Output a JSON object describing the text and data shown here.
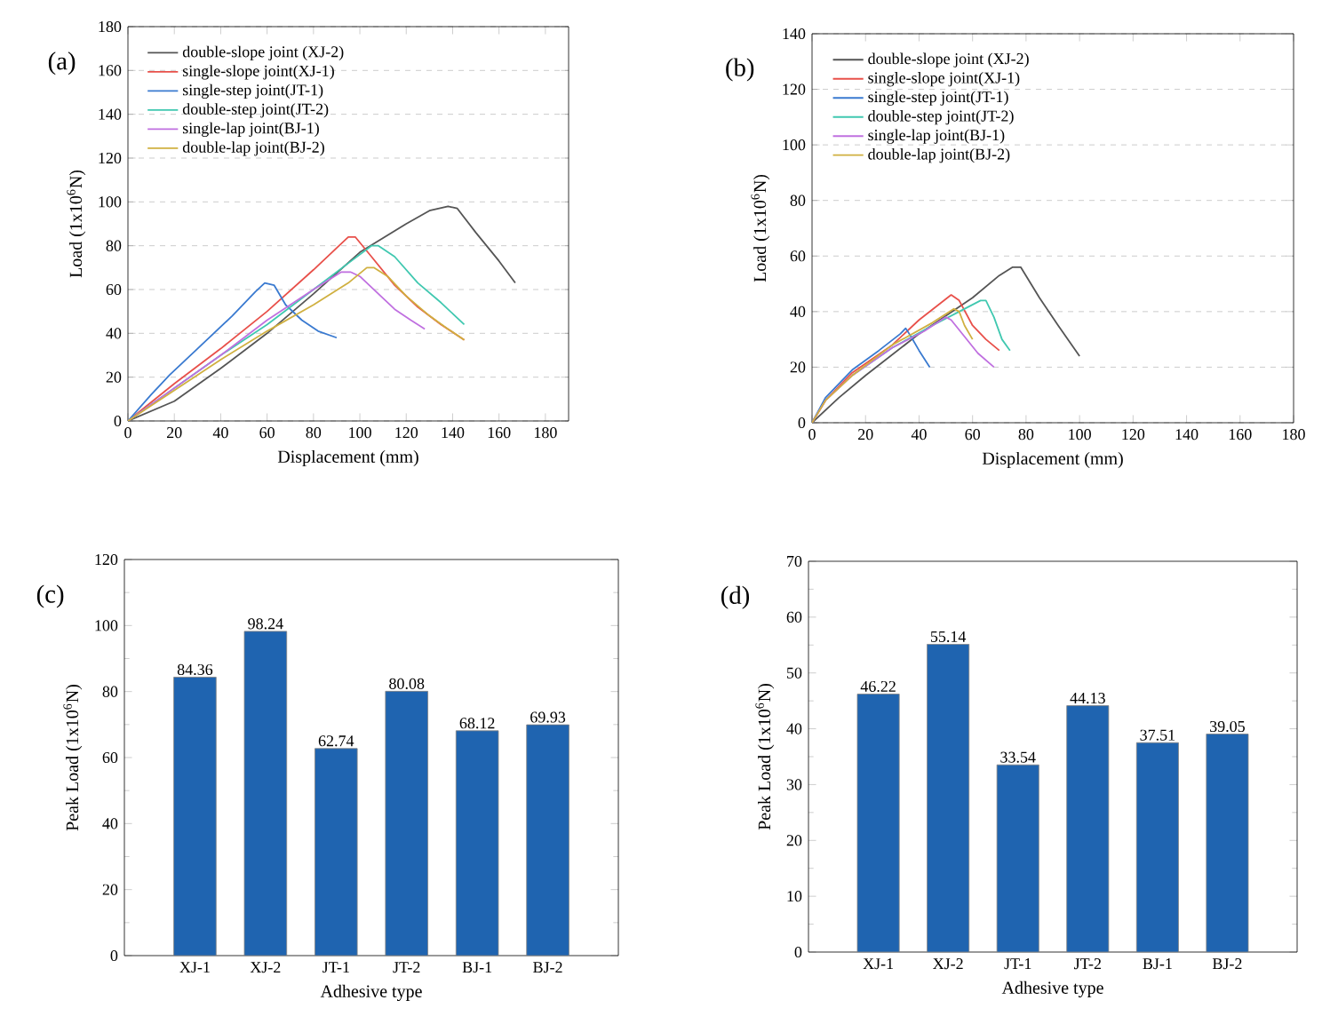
{
  "chart_data": [
    {
      "type": "line",
      "title": "(a)",
      "xlabel": "Displacement (mm)",
      "ylabel": "Load (1x10$^{6}$N)",
      "xlim": [
        0,
        190
      ],
      "xticks": [
        0,
        20,
        40,
        60,
        80,
        100,
        120,
        140,
        160,
        180
      ],
      "ylim": [
        0,
        180
      ],
      "yticks": [
        0,
        20,
        40,
        60,
        80,
        100,
        120,
        140,
        160,
        180
      ],
      "grid": "y",
      "legend": "top left",
      "series": [
        {
          "name": "double-slope joint (XJ-2)",
          "color": "#555555",
          "x": [
            0,
            20,
            40,
            60,
            80,
            100,
            120,
            130,
            138,
            142,
            150,
            160,
            167
          ],
          "values": [
            0,
            9,
            24,
            40,
            58,
            77,
            90,
            96,
            98,
            97,
            86,
            73,
            63
          ]
        },
        {
          "name": "single-slope joint(XJ-1)",
          "color": "#e8504a",
          "x": [
            0,
            20,
            40,
            60,
            80,
            88,
            95,
            98,
            105,
            115,
            125,
            135,
            145
          ],
          "values": [
            0,
            17,
            33,
            50,
            69,
            77,
            84,
            84,
            75,
            62,
            52,
            44,
            37
          ]
        },
        {
          "name": "single-step joint(JT-1)",
          "color": "#3a7ad0",
          "x": [
            0,
            10,
            18,
            30,
            45,
            55,
            59,
            63,
            68,
            75,
            82,
            90
          ],
          "values": [
            0,
            12,
            21,
            33,
            48,
            59,
            63,
            62,
            53,
            46,
            41,
            38
          ]
        },
        {
          "name": "double-step joint(JT-2)",
          "color": "#40c8b0",
          "x": [
            0,
            40,
            60,
            80,
            95,
            105,
            108,
            115,
            125,
            135,
            145
          ],
          "values": [
            0,
            30,
            44,
            60,
            72,
            80,
            80,
            75,
            63,
            54,
            44
          ]
        },
        {
          "name": "single-lap joint(BJ-1)",
          "color": "#c070e0",
          "x": [
            0,
            20,
            40,
            60,
            80,
            92,
            96,
            100,
            108,
            115,
            122,
            128
          ],
          "values": [
            0,
            15,
            30,
            46,
            60,
            68,
            68,
            66,
            58,
            51,
            46,
            42
          ]
        },
        {
          "name": "double-lap joint(BJ-2)",
          "color": "#d0b040",
          "x": [
            0,
            20,
            40,
            60,
            80,
            95,
            103,
            106,
            112,
            120,
            130,
            138,
            145
          ],
          "values": [
            0,
            14,
            28,
            41,
            53,
            63,
            70,
            70,
            66,
            57,
            48,
            42,
            37
          ]
        }
      ]
    },
    {
      "type": "line",
      "title": "(b)",
      "xlabel": "Displacement (mm)",
      "ylabel": "Load (1x10$^{6}$N)",
      "xlim": [
        0,
        180
      ],
      "xticks": [
        0,
        20,
        40,
        60,
        80,
        100,
        120,
        140,
        160,
        180
      ],
      "ylim": [
        0,
        140
      ],
      "yticks": [
        0,
        20,
        40,
        60,
        80,
        100,
        120,
        140
      ],
      "grid": "y",
      "legend": "top left",
      "series": [
        {
          "name": "double-slope joint (XJ-2)",
          "color": "#555555",
          "x": [
            0,
            10,
            20,
            40,
            60,
            70,
            75,
            78,
            85,
            92,
            100
          ],
          "values": [
            0,
            9,
            17,
            32,
            45,
            53,
            56,
            56,
            45,
            35,
            24
          ]
        },
        {
          "name": "single-slope joint(XJ-1)",
          "color": "#e8504a",
          "x": [
            0,
            5,
            15,
            30,
            40,
            48,
            52,
            55,
            60,
            65,
            70
          ],
          "values": [
            0,
            8,
            18,
            28,
            37,
            43,
            46,
            44,
            35,
            30,
            26
          ]
        },
        {
          "name": "single-step joint(JT-1)",
          "color": "#3a7ad0",
          "x": [
            0,
            5,
            15,
            25,
            33,
            35,
            37,
            40,
            44
          ],
          "values": [
            0,
            9,
            19,
            26,
            32,
            34,
            31,
            26,
            20
          ]
        },
        {
          "name": "double-step joint(JT-2)",
          "color": "#40c8b0",
          "x": [
            15,
            30,
            45,
            55,
            63,
            65,
            68,
            71,
            74
          ],
          "values": [
            17,
            27,
            35,
            40,
            44,
            44,
            38,
            30,
            26
          ]
        },
        {
          "name": "single-lap joint(BJ-1)",
          "color": "#c070e0",
          "x": [
            0,
            5,
            15,
            30,
            42,
            50,
            52,
            57,
            62,
            68
          ],
          "values": [
            0,
            8,
            17,
            27,
            33,
            38,
            37,
            31,
            25,
            20
          ]
        },
        {
          "name": "double-lap joint(BJ-2)",
          "color": "#d0b040",
          "x": [
            0,
            5,
            15,
            30,
            45,
            53,
            55,
            57,
            60
          ],
          "values": [
            0,
            8,
            17,
            28,
            36,
            41,
            40,
            35,
            30
          ]
        }
      ]
    },
    {
      "type": "bar",
      "title": "(c)",
      "xlabel": "Adhesive type",
      "ylabel": "Peak Load (1x10$^{6}$N)",
      "categories": [
        "XJ-1",
        "XJ-2",
        "JT-1",
        "JT-2",
        "BJ-1",
        "BJ-2"
      ],
      "values": [
        84.36,
        98.24,
        62.74,
        80.08,
        68.12,
        69.93
      ],
      "color": "#1f64b0",
      "ylim": [
        0,
        120
      ],
      "yticks": [
        0,
        20,
        40,
        60,
        80,
        100,
        120
      ],
      "data_labels": true
    },
    {
      "type": "bar",
      "title": "(d)",
      "xlabel": "Adhesive type",
      "ylabel": "Peak Load (1x10$^{6}$N)",
      "categories": [
        "XJ-1",
        "XJ-2",
        "JT-1",
        "JT-2",
        "BJ-1",
        "BJ-2"
      ],
      "values": [
        46.22,
        55.14,
        33.54,
        44.13,
        37.51,
        39.05
      ],
      "color": "#1f64b0",
      "ylim": [
        0,
        70
      ],
      "yticks": [
        0,
        10,
        20,
        30,
        40,
        50,
        60,
        70
      ],
      "data_labels": true
    }
  ]
}
